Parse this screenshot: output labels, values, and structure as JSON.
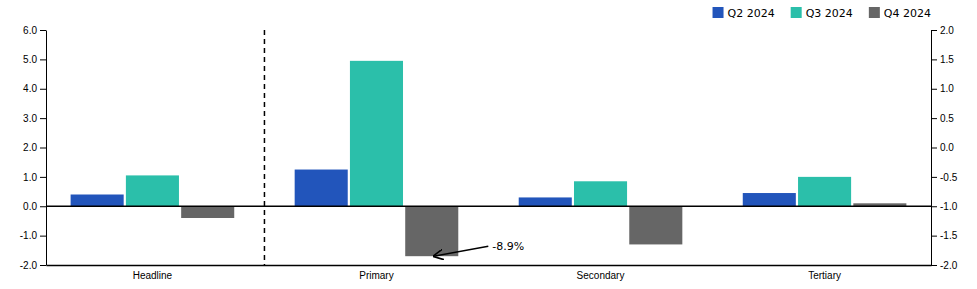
{
  "chart_data": {
    "type": "bar",
    "categories": [
      "Headline",
      "Primary",
      "Secondary",
      "Tertiary"
    ],
    "series": [
      {
        "name": "Q2 2024",
        "color": "#2255bb",
        "values": [
          0.4,
          1.25,
          0.3,
          0.45
        ]
      },
      {
        "name": "Q3 2024",
        "color": "#2bbfaa",
        "values": [
          1.05,
          4.95,
          0.85,
          1.0
        ]
      },
      {
        "name": "Q4 2024",
        "color": "#666666",
        "values": [
          -0.4,
          -1.7,
          -1.3,
          0.1
        ]
      }
    ],
    "ylim": [
      -2.0,
      6.0
    ],
    "yticks": [
      {
        "value": -2.0,
        "label": "-2.0"
      },
      {
        "value": -1.0,
        "label": "-1.0"
      },
      {
        "value": 0.0,
        "label": "0.0"
      },
      {
        "value": 1.0,
        "label": "1.0"
      },
      {
        "value": 2.0,
        "label": "2.0"
      },
      {
        "value": 3.0,
        "label": "3.0"
      },
      {
        "value": 4.0,
        "label": "4.0"
      },
      {
        "value": 5.0,
        "label": "5.0"
      },
      {
        "value": 6.0,
        "label": "6.0"
      }
    ],
    "y2lim": [
      -2.0,
      2.0
    ],
    "y2ticks": [
      {
        "value": -2.0,
        "label": "-2.0"
      },
      -1.5,
      {
        "value": -1.0,
        "label": "-1.0"
      },
      -0.5,
      {
        "value": 0.0,
        "label": "0.0"
      },
      0.5,
      {
        "value": 1.0,
        "label": "1.0"
      },
      1.5,
      {
        "value": 2.0,
        "label": "2.0"
      }
    ],
    "annotations": [
      {
        "text": "-8.9%"
      }
    ],
    "legend": "upper right",
    "grid": false
  }
}
